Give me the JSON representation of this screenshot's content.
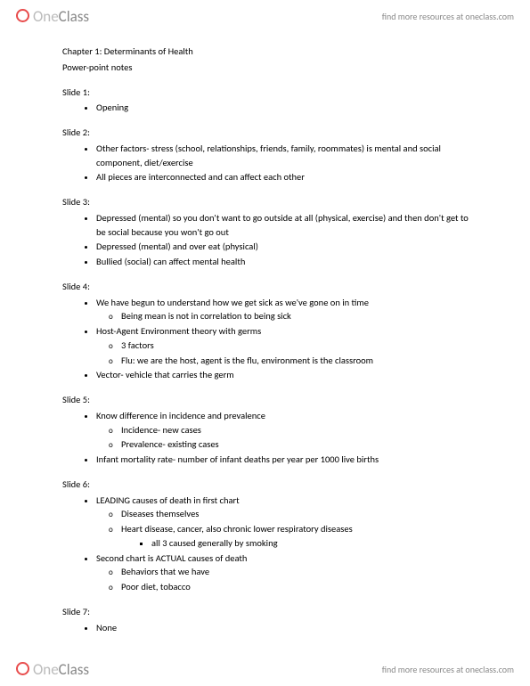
{
  "brand": {
    "one": "One",
    "class": "Class",
    "tagline": "find more resources at oneclass.com"
  },
  "doc": {
    "title": "Chapter 1: Determinants of Health",
    "subtitle": "Power-point notes",
    "slides": [
      {
        "label": "Slide 1:",
        "items": [
          {
            "t": "Opening"
          }
        ]
      },
      {
        "label": "Slide 2:",
        "items": [
          {
            "t": "Other factors- stress (school, relationships, friends, family, roommates) is mental and social component, diet/exercise"
          },
          {
            "t": "All pieces are interconnected and can affect each other"
          }
        ]
      },
      {
        "label": "Slide 3:",
        "items": [
          {
            "t": "Depressed (mental) so you don't want to go outside at all (physical, exercise) and then don't get to be social because you won't go out"
          },
          {
            "t": "Depressed (mental) and over eat (physical)"
          },
          {
            "t": "Bullied (social) can affect mental health"
          }
        ]
      },
      {
        "label": "Slide 4:",
        "items": [
          {
            "t": "We have begun to understand how we get sick as we've gone on in time",
            "sub": [
              {
                "t": "Being mean is not in correlation to being sick"
              }
            ]
          },
          {
            "t": "Host-Agent Environment theory with germs",
            "sub": [
              {
                "t": "3 factors"
              },
              {
                "t": "Flu: we are the host, agent is the flu, environment is the classroom"
              }
            ]
          },
          {
            "t": "Vector- vehicle that carries the germ"
          }
        ]
      },
      {
        "label": "Slide 5:",
        "items": [
          {
            "t": "Know difference in incidence and prevalence",
            "sub": [
              {
                "t": "Incidence- new cases"
              },
              {
                "t": "Prevalence- existing cases"
              }
            ]
          },
          {
            "t": "Infant mortality rate- number of infant deaths per year per 1000 live births"
          }
        ]
      },
      {
        "label": "Slide 6:",
        "items": [
          {
            "t": "LEADING causes of death in first chart",
            "sub": [
              {
                "t": "Diseases themselves"
              },
              {
                "t": "Heart disease, cancer, also chronic lower respiratory diseases",
                "sub": [
                  {
                    "t": "all 3 caused generally by smoking"
                  }
                ]
              }
            ]
          },
          {
            "t": "Second chart is ACTUAL causes of death",
            "sub": [
              {
                "t": "Behaviors that we have"
              },
              {
                "t": "Poor diet, tobacco"
              }
            ]
          }
        ]
      },
      {
        "label": "Slide 7:",
        "items": [
          {
            "t": "None"
          }
        ]
      }
    ]
  }
}
